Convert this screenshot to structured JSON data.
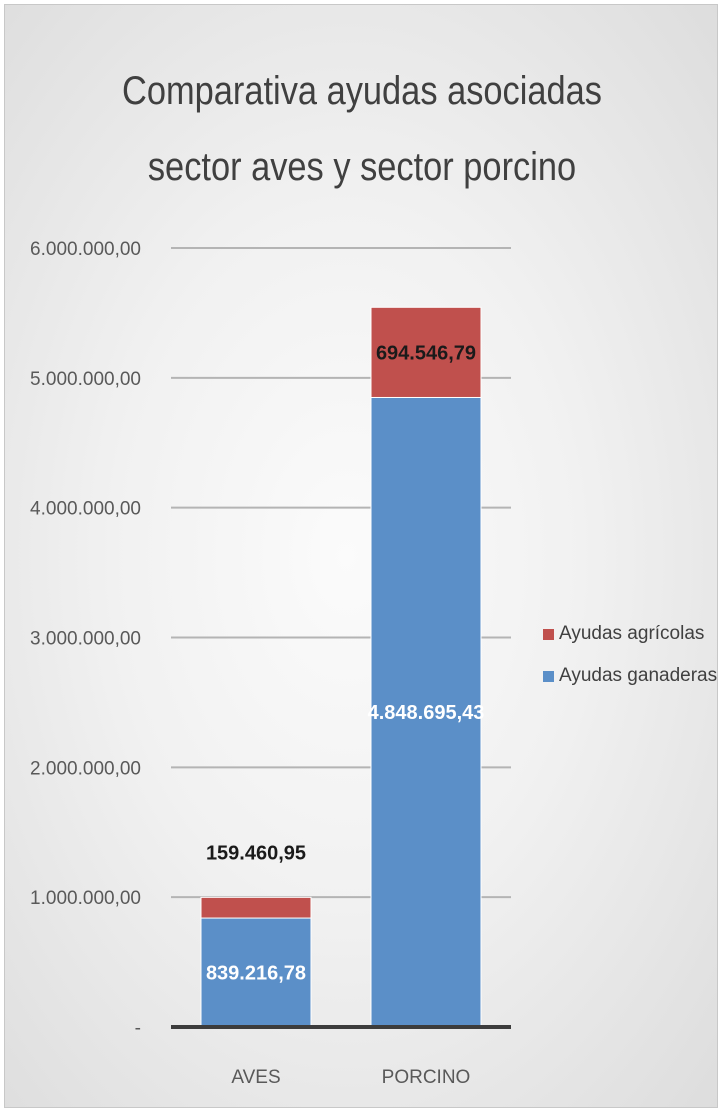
{
  "chart_data": {
    "type": "bar",
    "stacked": true,
    "title": [
      "Comparativa ayudas asociadas",
      "sector aves y sector porcino"
    ],
    "categories": [
      "AVES",
      "PORCINO"
    ],
    "series": [
      {
        "name": "Ayudas ganaderas",
        "color": "#5b8fc8",
        "label_color": "#ffffff",
        "values": [
          839216.78,
          4848695.43
        ],
        "labels": [
          "839.216,78",
          "4.848.695,43"
        ],
        "label_position": "inside"
      },
      {
        "name": "Ayudas agrícolas",
        "color": "#c0504d",
        "label_color": "#1a1a1a",
        "values": [
          159460.95,
          694546.79
        ],
        "labels": [
          "159.460,95",
          "694.546,79"
        ],
        "label_position": [
          "above",
          "inside"
        ]
      }
    ],
    "ylim": [
      0,
      6000000
    ],
    "yticks": [
      "-",
      "1.000.000,00",
      "2.000.000,00",
      "3.000.000,00",
      "4.000.000,00",
      "5.000.000,00",
      "6.000.000,00"
    ],
    "ytick_values": [
      0,
      1000000,
      2000000,
      3000000,
      4000000,
      5000000,
      6000000
    ],
    "xlabel": "",
    "ylabel": "",
    "grid": true,
    "legend": {
      "position": "right",
      "order": [
        "Ayudas agrícolas",
        "Ayudas ganaderas"
      ]
    }
  }
}
